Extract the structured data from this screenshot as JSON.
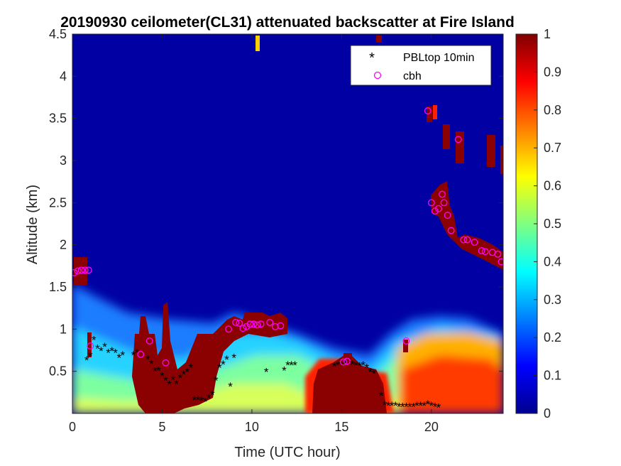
{
  "chart_data": {
    "type": "heatmap",
    "title": "20190930 ceilometer(CL31) attenuated backscatter at Fire Island",
    "xlabel": "Time (UTC hour)",
    "ylabel": "Altitude (km)",
    "xlim": [
      0,
      24
    ],
    "ylim": [
      0,
      4.5
    ],
    "xticks": [
      "0",
      "5",
      "10",
      "15",
      "20"
    ],
    "yticks": [
      "0.5",
      "1",
      "1.5",
      "2",
      "2.5",
      "3",
      "3.5",
      "4",
      "4.5"
    ],
    "colorbar": {
      "ticks": [
        "0",
        "0.1",
        "0.2",
        "0.3",
        "0.4",
        "0.5",
        "0.6",
        "0.7",
        "0.8",
        "0.9",
        "1"
      ],
      "range": [
        0,
        1
      ],
      "colormap": "jet"
    },
    "legend": {
      "position": "top-right",
      "entries": [
        {
          "label": "PBLtop 10min",
          "marker": "*",
          "color": "#000000"
        },
        {
          "label": "cbh",
          "marker": "o",
          "color": "#ff00ff"
        }
      ]
    },
    "series": [
      {
        "name": "PBLtop 10min",
        "points": [
          [
            0.8,
            0.64
          ],
          [
            1.0,
            0.69
          ],
          [
            1.2,
            0.88
          ],
          [
            1.4,
            0.78
          ],
          [
            1.6,
            0.75
          ],
          [
            1.8,
            0.8
          ],
          [
            2.0,
            0.73
          ],
          [
            2.2,
            0.75
          ],
          [
            2.4,
            0.73
          ],
          [
            2.6,
            0.67
          ],
          [
            2.8,
            0.7
          ],
          [
            3.4,
            0.7
          ],
          [
            3.6,
            0.73
          ],
          [
            4.2,
            0.65
          ],
          [
            4.4,
            0.6
          ],
          [
            4.6,
            0.51
          ],
          [
            4.8,
            0.52
          ],
          [
            5.0,
            0.45
          ],
          [
            5.2,
            0.4
          ],
          [
            5.4,
            0.35
          ],
          [
            5.6,
            0.41
          ],
          [
            5.8,
            0.36
          ],
          [
            6.0,
            0.43
          ],
          [
            6.2,
            0.47
          ],
          [
            6.4,
            0.5
          ],
          [
            6.6,
            0.55
          ],
          [
            6.8,
            0.17
          ],
          [
            7.0,
            0.17
          ],
          [
            7.2,
            0.16
          ],
          [
            7.4,
            0.15
          ],
          [
            7.6,
            0.19
          ],
          [
            7.8,
            0.23
          ],
          [
            8.0,
            0.4
          ],
          [
            8.2,
            0.55
          ],
          [
            8.4,
            0.59
          ],
          [
            8.6,
            0.65
          ],
          [
            8.8,
            0.33
          ],
          [
            9.0,
            0.67
          ],
          [
            10.8,
            0.5
          ],
          [
            11.8,
            0.52
          ],
          [
            12.0,
            0.58
          ],
          [
            12.2,
            0.58
          ],
          [
            12.4,
            0.58
          ],
          [
            14.6,
            0.57
          ],
          [
            14.8,
            0.58
          ],
          [
            15.0,
            0.58
          ],
          [
            15.2,
            0.6
          ],
          [
            15.6,
            0.59
          ],
          [
            15.8,
            0.58
          ],
          [
            16.0,
            0.57
          ],
          [
            16.2,
            0.58
          ],
          [
            16.4,
            0.55
          ],
          [
            16.6,
            0.5
          ],
          [
            16.8,
            0.48
          ],
          [
            17.2,
            0.22
          ],
          [
            17.4,
            0.11
          ],
          [
            17.6,
            0.1
          ],
          [
            17.8,
            0.1
          ],
          [
            18.0,
            0.1
          ],
          [
            18.2,
            0.09
          ],
          [
            18.4,
            0.09
          ],
          [
            18.6,
            0.09
          ],
          [
            18.8,
            0.09
          ],
          [
            19.0,
            0.09
          ],
          [
            19.2,
            0.1
          ],
          [
            19.4,
            0.1
          ],
          [
            19.6,
            0.1
          ],
          [
            19.8,
            0.12
          ],
          [
            20.0,
            0.1
          ],
          [
            20.2,
            0.09
          ],
          [
            20.4,
            0.08
          ]
        ]
      },
      {
        "name": "cbh",
        "points": [
          [
            0.1,
            1.67
          ],
          [
            0.3,
            1.69
          ],
          [
            0.5,
            1.7
          ],
          [
            0.7,
            1.7
          ],
          [
            0.9,
            1.7
          ],
          [
            1.0,
            0.8
          ],
          [
            3.8,
            0.7
          ],
          [
            4.3,
            0.86
          ],
          [
            5.2,
            0.6
          ],
          [
            8.7,
            1.0
          ],
          [
            9.1,
            1.08
          ],
          [
            9.3,
            1.07
          ],
          [
            9.5,
            1.01
          ],
          [
            9.7,
            1.03
          ],
          [
            9.9,
            1.06
          ],
          [
            10.1,
            1.06
          ],
          [
            10.3,
            1.05
          ],
          [
            10.5,
            1.06
          ],
          [
            11.0,
            1.08
          ],
          [
            11.3,
            1.03
          ],
          [
            11.6,
            1.04
          ],
          [
            15.1,
            0.61
          ],
          [
            15.3,
            0.62
          ],
          [
            18.6,
            0.86
          ],
          [
            19.8,
            3.59
          ],
          [
            20.0,
            2.5
          ],
          [
            20.2,
            2.4
          ],
          [
            20.4,
            2.43
          ],
          [
            20.6,
            2.6
          ],
          [
            20.7,
            2.5
          ],
          [
            20.9,
            2.35
          ],
          [
            21.1,
            2.17
          ],
          [
            21.5,
            3.25
          ],
          [
            21.8,
            2.06
          ],
          [
            22.0,
            2.06
          ],
          [
            22.4,
            2.03
          ],
          [
            22.8,
            1.93
          ],
          [
            23.0,
            1.92
          ],
          [
            23.4,
            1.91
          ],
          [
            23.7,
            1.89
          ],
          [
            23.9,
            1.8
          ]
        ]
      }
    ]
  },
  "colors": {
    "background_low": "#0000a3",
    "field_colormap": "jet"
  }
}
